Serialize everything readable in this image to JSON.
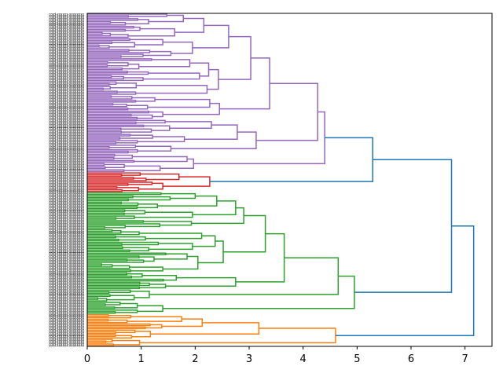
{
  "chart_data": {
    "type": "dendrogram",
    "orientation": "right",
    "title": "",
    "xlabel": "",
    "ylabel": "",
    "xlim": [
      0,
      7.5
    ],
    "x_ticks": [
      0,
      1,
      2,
      3,
      4,
      5,
      6,
      7
    ],
    "leaf_label_pattern": "cord-xxxxxx-xxxxxxxx",
    "leaf_count_estimate": 280,
    "colors": {
      "above_threshold": "#1f77b4",
      "purple": "#9467bd",
      "red": "#d62728",
      "green": "#2ca02c",
      "orange": "#ff7f0e"
    },
    "tree": {
      "h": 7.16,
      "c": "above_threshold",
      "children": [
        {
          "h": 6.75,
          "c": "above_threshold",
          "children": [
            {
              "h": 5.29,
              "c": "above_threshold",
              "children": [
                {
                  "h": 4.4,
                  "c": "purple",
                  "children": [
                    {
                      "h": 4.27,
                      "c": "purple",
                      "children": [
                        {
                          "h": 3.38,
                          "c": "purple",
                          "children": [
                            {
                              "h": 3.03,
                              "c": "purple",
                              "children": [
                                {
                                  "h": 2.62,
                                  "c": "purple",
                                  "children": [
                                    {
                                      "h": 2.16,
                                      "c": "purple",
                                      "children": [
                                        {
                                          "h": 1.78,
                                          "c": "purple",
                                          "leaves": 8
                                        },
                                        {
                                          "h": 1.62,
                                          "c": "purple",
                                          "leaves": 8
                                        }
                                      ]
                                    },
                                    {
                                      "h": 1.95,
                                      "c": "purple",
                                      "children": [
                                        {
                                          "h": 1.4,
                                          "c": "purple",
                                          "leaves": 7
                                        },
                                        {
                                          "h": 1.55,
                                          "c": "purple",
                                          "leaves": 6
                                        }
                                      ]
                                    }
                                  ]
                                },
                                {
                                  "h": 2.43,
                                  "c": "purple",
                                  "children": [
                                    {
                                      "h": 2.25,
                                      "c": "purple",
                                      "children": [
                                        {
                                          "h": 1.9,
                                          "c": "purple",
                                          "leaves": 8
                                        },
                                        {
                                          "h": 2.08,
                                          "c": "purple",
                                          "leaves": 7
                                        }
                                      ]
                                    },
                                    {
                                      "h": 2.22,
                                      "c": "purple",
                                      "leaves": 9
                                    }
                                  ]
                                }
                              ]
                            },
                            {
                              "h": 2.45,
                              "c": "purple",
                              "children": [
                                {
                                  "h": 2.27,
                                  "c": "purple",
                                  "leaves": 10
                                },
                                {
                                  "h": 1.4,
                                  "c": "purple",
                                  "leaves": 6
                                }
                              ]
                            }
                          ]
                        },
                        {
                          "h": 3.13,
                          "c": "purple",
                          "children": [
                            {
                              "h": 2.78,
                              "c": "purple",
                              "children": [
                                {
                                  "h": 2.3,
                                  "c": "purple",
                                  "leaves": 9
                                },
                                {
                                  "h": 1.8,
                                  "c": "purple",
                                  "leaves": 7
                                }
                              ]
                            },
                            {
                              "h": 1.55,
                              "c": "purple",
                              "leaves": 6
                            }
                          ]
                        }
                      ]
                    },
                    {
                      "h": 1.97,
                      "c": "purple",
                      "children": [
                        {
                          "h": 1.85,
                          "c": "purple",
                          "leaves": 6
                        },
                        {
                          "h": 1.35,
                          "c": "purple",
                          "leaves": 6
                        }
                      ]
                    }
                  ]
                },
                {
                  "h": 2.27,
                  "c": "red",
                  "children": [
                    {
                      "h": 1.7,
                      "c": "red",
                      "leaves": 6
                    },
                    {
                      "h": 1.4,
                      "c": "red",
                      "children": [
                        {
                          "h": 1.2,
                          "c": "red",
                          "leaves": 3
                        },
                        {
                          "h": 0.95,
                          "c": "red",
                          "leaves": 4
                        }
                      ]
                    }
                  ]
                }
              ]
            },
            {
              "h": 4.95,
              "c": "green",
              "children": [
                {
                  "h": 4.65,
                  "c": "green",
                  "children": [
                    {
                      "h": 3.65,
                      "c": "green",
                      "children": [
                        {
                          "h": 3.3,
                          "c": "green",
                          "children": [
                            {
                              "h": 2.9,
                              "c": "green",
                              "children": [
                                {
                                  "h": 2.75,
                                  "c": "green",
                                  "children": [
                                    {
                                      "h": 2.4,
                                      "c": "green",
                                      "children": [
                                        {
                                          "h": 2.0,
                                          "c": "green",
                                          "leaves": 6
                                        },
                                        {
                                          "h": 1.3,
                                          "c": "green",
                                          "leaves": 5
                                        }
                                      ]
                                    },
                                    {
                                      "h": 1.95,
                                      "c": "green",
                                      "leaves": 7
                                    }
                                  ]
                                },
                                {
                                  "h": 1.93,
                                  "c": "green",
                                  "leaves": 6
                                }
                              ]
                            },
                            {
                              "h": 2.52,
                              "c": "green",
                              "children": [
                                {
                                  "h": 2.37,
                                  "c": "green",
                                  "children": [
                                    {
                                      "h": 2.12,
                                      "c": "green",
                                      "leaves": 8
                                    },
                                    {
                                      "h": 1.95,
                                      "c": "green",
                                      "leaves": 7
                                    }
                                  ]
                                },
                                {
                                  "h": 2.05,
                                  "c": "green",
                                  "children": [
                                    {
                                      "h": 1.85,
                                      "c": "green",
                                      "leaves": 7
                                    },
                                    {
                                      "h": 1.4,
                                      "c": "green",
                                      "leaves": 6
                                    }
                                  ]
                                }
                              ]
                            }
                          ]
                        },
                        {
                          "h": 2.75,
                          "c": "green",
                          "children": [
                            {
                              "h": 1.65,
                              "c": "green",
                              "leaves": 6
                            },
                            {
                              "h": 1.45,
                              "c": "green",
                              "leaves": 5
                            }
                          ]
                        }
                      ]
                    },
                    {
                      "h": 1.15,
                      "c": "green",
                      "leaves": 8
                    }
                  ]
                },
                {
                  "h": 1.4,
                  "c": "green",
                  "leaves": 8
                }
              ]
            }
          ]
        },
        {
          "h": 4.6,
          "c": "orange",
          "children": [
            {
              "h": 3.18,
              "c": "orange",
              "children": [
                {
                  "h": 2.13,
                  "c": "orange",
                  "children": [
                    {
                      "h": 1.75,
                      "c": "orange",
                      "leaves": 6
                    },
                    {
                      "h": 1.38,
                      "c": "orange",
                      "leaves": 4
                    }
                  ]
                },
                {
                  "h": 1.17,
                  "c": "orange",
                  "leaves": 6
                }
              ]
            },
            {
              "h": 0.97,
              "c": "orange",
              "leaves": 5
            }
          ]
        }
      ]
    }
  }
}
